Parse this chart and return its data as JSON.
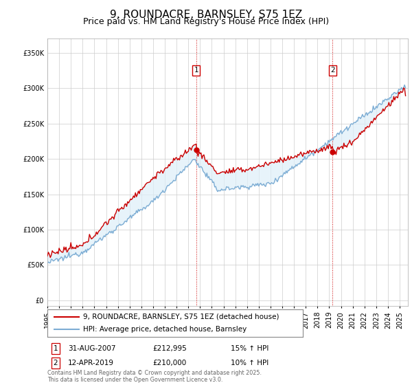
{
  "title": "9, ROUNDACRE, BARNSLEY, S75 1EZ",
  "subtitle": "Price paid vs. HM Land Registry's House Price Index (HPI)",
  "yticks": [
    0,
    50000,
    100000,
    150000,
    200000,
    250000,
    300000,
    350000
  ],
  "ylim": [
    -8000,
    370000
  ],
  "xlim_start": 1995.0,
  "xlim_end": 2025.7,
  "legend_line1": "9, ROUNDACRE, BARNSLEY, S75 1EZ (detached house)",
  "legend_line2": "HPI: Average price, detached house, Barnsley",
  "marker1_label": "1",
  "marker1_date": "31-AUG-2007",
  "marker1_price": "£212,995",
  "marker1_hpi": "15% ↑ HPI",
  "marker1_x": 2007.67,
  "marker1_y": 212995,
  "marker2_label": "2",
  "marker2_date": "12-APR-2019",
  "marker2_price": "£210,000",
  "marker2_hpi": "10% ↑ HPI",
  "marker2_x": 2019.28,
  "marker2_y": 210000,
  "line_color_property": "#cc0000",
  "line_color_hpi": "#7dadd4",
  "fill_color_hpi": "#ddeef8",
  "grid_color": "#cccccc",
  "bg_color": "#ffffff",
  "footer_text": "Contains HM Land Registry data © Crown copyright and database right 2025.\nThis data is licensed under the Open Government Licence v3.0.",
  "title_fontsize": 11,
  "subtitle_fontsize": 9,
  "tick_fontsize": 7,
  "legend_fontsize": 7.5,
  "annotation_fontsize": 7.5
}
